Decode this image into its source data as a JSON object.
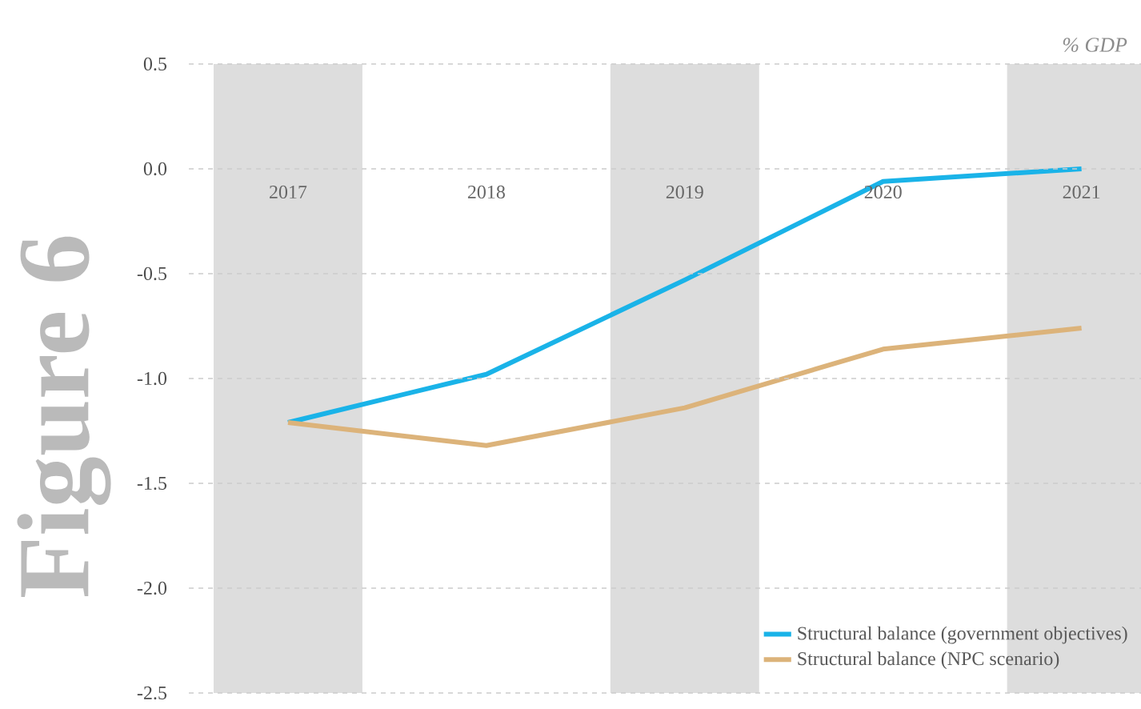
{
  "chart_data": {
    "type": "line",
    "ylabel": "% GDP",
    "annotations": [
      "Figure 6"
    ],
    "categories": [
      "2017",
      "2018",
      "2019",
      "2020",
      "2021"
    ],
    "series": [
      {
        "name": "Structural balance (government objectives)",
        "color": "#1ab3e8",
        "values": [
          -1.21,
          -0.98,
          -0.53,
          -0.06,
          0.0
        ]
      },
      {
        "name": "Structural balance (NPC scenario)",
        "color": "#dcb37a",
        "values": [
          -1.21,
          -1.32,
          -1.14,
          -0.86,
          -0.76
        ]
      }
    ],
    "bands": [
      {
        "axis": "x",
        "from": "2017",
        "to": "2017",
        "color": "#dddddd"
      },
      {
        "axis": "x",
        "from": "2019",
        "to": "2019",
        "color": "#dddddd"
      },
      {
        "axis": "x",
        "from": "2021",
        "to": "2021",
        "color": "#dddddd"
      }
    ],
    "ylim": [
      -2.5,
      0.5
    ],
    "yticks": [
      {
        "value": -2.5,
        "label": "-2.5"
      },
      {
        "value": -2,
        "label": "-2.0"
      },
      {
        "value": -1.5,
        "label": "-1.5"
      },
      {
        "value": -1,
        "label": "-1.0"
      },
      {
        "value": -0.5,
        "label": "-0.5"
      },
      {
        "value": 0,
        "label": "0.0"
      },
      {
        "value": 0.5,
        "label": "0.5"
      }
    ],
    "grid": "y",
    "legend": "bottom right",
    "marker": "none",
    "line_style": "solid"
  }
}
